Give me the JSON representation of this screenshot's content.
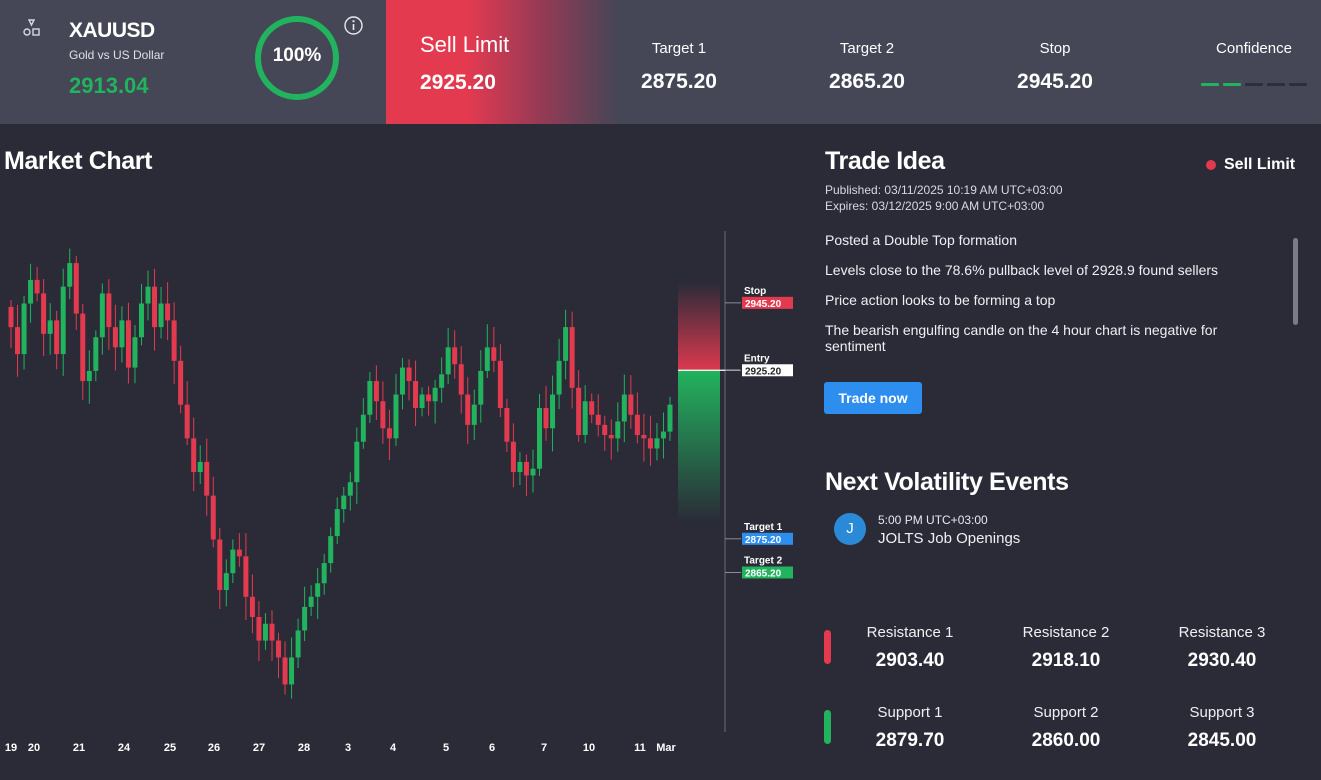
{
  "header": {
    "symbol": "XAUUSD",
    "description": "Gold vs US Dollar",
    "price": "2913.04",
    "percent": "100%",
    "order_type": "Sell Limit",
    "order_price": "2925.20",
    "target1_label": "Target 1",
    "target1_value": "2875.20",
    "target2_label": "Target 2",
    "target2_value": "2865.20",
    "stop_label": "Stop",
    "stop_value": "2945.20",
    "confidence_label": "Confidence",
    "confidence_level": 2,
    "confidence_max": 5
  },
  "market_chart": {
    "title": "Market Chart"
  },
  "chart_data": {
    "type": "candlestick",
    "x_ticks": [
      "19",
      "20",
      "21",
      "24",
      "25",
      "26",
      "27",
      "28",
      "3",
      "4",
      "5",
      "6",
      "7",
      "10",
      "11",
      "Mar"
    ],
    "levels": [
      {
        "name": "Stop",
        "value": "2945.20",
        "color": "#e43a50"
      },
      {
        "name": "Entry",
        "value": "2925.20",
        "color": "#ffffff"
      },
      {
        "name": "Target 1",
        "value": "2875.20",
        "color": "#2d8ef0"
      },
      {
        "name": "Target 2",
        "value": "2865.20",
        "color": "#22b35e"
      }
    ],
    "up_color": "#22b35e",
    "down_color": "#e43a50",
    "closes": [
      2938,
      2930,
      2945,
      2952,
      2948,
      2936,
      2940,
      2930,
      2950,
      2957,
      2942,
      2922,
      2925,
      2935,
      2948,
      2938,
      2932,
      2940,
      2926,
      2935,
      2945,
      2950,
      2938,
      2945,
      2940,
      2928,
      2915,
      2905,
      2895,
      2898,
      2888,
      2875,
      2860,
      2865,
      2872,
      2870,
      2858,
      2852,
      2845,
      2850,
      2845,
      2840,
      2832,
      2840,
      2848,
      2855,
      2858,
      2862,
      2868,
      2876,
      2884,
      2888,
      2892,
      2904,
      2912,
      2922,
      2916,
      2908,
      2905,
      2918,
      2926,
      2922,
      2914,
      2918,
      2916,
      2920,
      2924,
      2932,
      2927,
      2918,
      2909,
      2915,
      2925,
      2932,
      2928,
      2914,
      2904,
      2895,
      2898,
      2894,
      2896,
      2914,
      2908,
      2918,
      2928,
      2938,
      2920,
      2906,
      2916,
      2912,
      2909,
      2906,
      2905,
      2910,
      2918,
      2912,
      2906,
      2905,
      2902,
      2905,
      2907,
      2915
    ]
  },
  "trade_idea": {
    "title": "Trade Idea",
    "badge": "Sell Limit",
    "published": "Published: 03/11/2025 10:19 AM UTC+03:00",
    "expires": "Expires: 03/12/2025 9:00 AM UTC+03:00",
    "points": [
      "Posted a Double Top formation",
      "Levels close to the 78.6% pullback level of 2928.9 found sellers",
      "Price action looks to be forming a top",
      "The bearish engulfing candle on the 4 hour chart is negative for sentiment"
    ],
    "button": "Trade now"
  },
  "events": {
    "title": "Next Volatility Events",
    "items": [
      {
        "avatar": "J",
        "time": "5:00 PM UTC+03:00",
        "name": "JOLTS Job Openings"
      }
    ]
  },
  "levels": {
    "resistance": [
      {
        "label": "Resistance 1",
        "value": "2903.40"
      },
      {
        "label": "Resistance 2",
        "value": "2918.10"
      },
      {
        "label": "Resistance 3",
        "value": "2930.40"
      }
    ],
    "support": [
      {
        "label": "Support 1",
        "value": "2879.70"
      },
      {
        "label": "Support 2",
        "value": "2860.00"
      },
      {
        "label": "Support 3",
        "value": "2845.00"
      }
    ]
  }
}
